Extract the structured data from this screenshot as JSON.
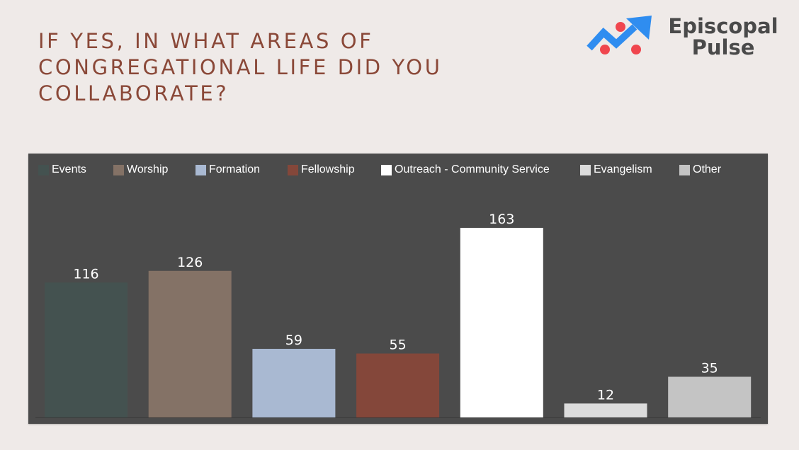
{
  "slide": {
    "title": "IF YES, IN WHAT AREAS OF\nCONGREGATIONAL LIFE DID YOU\nCOLLABORATE?"
  },
  "brand": {
    "name_line1": "Episcopal",
    "name_line2": "Pulse",
    "logo_icon": "trend-arrow-icon",
    "colors": {
      "arrow": "#2f8df0",
      "dots": "#f0464e",
      "text": "#4a4a4a"
    }
  },
  "chart_data": {
    "type": "bar",
    "categories": [
      "Events",
      "Worship",
      "Formation",
      "Fellowship",
      "Outreach - Community Service",
      "Evangelism",
      "Other"
    ],
    "values": [
      116,
      126,
      59,
      55,
      163,
      12,
      35
    ],
    "data_labels": [
      "116",
      "126",
      "59",
      "55",
      "163",
      "12",
      "35"
    ],
    "colors": [
      "#445250",
      "#847266",
      "#a9b9d2",
      "#84473a",
      "#ffffff",
      "#dcdcdc",
      "#c4c4c4"
    ],
    "legend": {
      "position": "top",
      "entries": [
        "Events",
        "Worship",
        "Formation",
        "Fellowship",
        "Outreach - Community Service",
        "Evangelism",
        "Other"
      ]
    },
    "ylim": [
      0,
      163
    ],
    "grid": false,
    "title": "",
    "xlabel": "",
    "ylabel": "",
    "background": "#4b4b4b"
  }
}
